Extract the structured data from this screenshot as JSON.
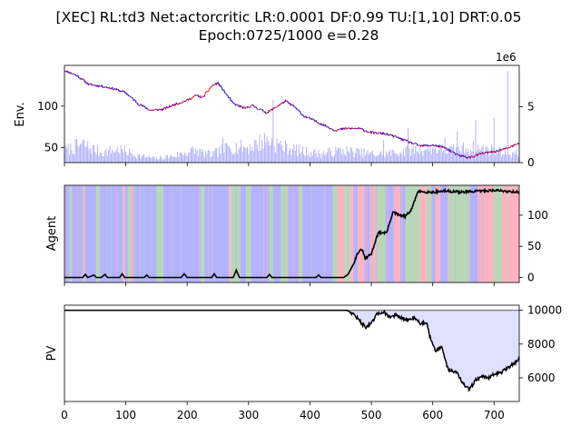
{
  "title_line1": "[XEC] RL:td3 Net:actorcritic LR:0.0001 DF:0.99 TU:[1,10] DRT:0.05",
  "title_line2": "Epoch:0725/1000 e=0.28",
  "colors": {
    "price_up": "#ff0000",
    "price_down": "#0000ff",
    "volume": "#aaaaff",
    "action_buy": "#b3b3ff",
    "action_hold": "#b7d7b7",
    "action_sell": "#ffb3c1",
    "agent_line": "#000000",
    "pv_line": "#000000",
    "pv_fill": "#e0e0ff",
    "pv_baseline": "#808080"
  },
  "chart_data": [
    {
      "type": "line",
      "name": "env",
      "ylabel": "Env.",
      "secondary_ylabel_multiplier": "1e6",
      "xlim": [
        0,
        741
      ],
      "ylim": [
        32,
        149
      ],
      "y_ticks": [
        50,
        100
      ],
      "y2lim": [
        0,
        8.7
      ],
      "y2_ticks": [
        0,
        5
      ],
      "price_knots": [
        [
          0,
          143
        ],
        [
          20,
          137
        ],
        [
          40,
          126
        ],
        [
          60,
          124
        ],
        [
          80,
          121
        ],
        [
          100,
          116
        ],
        [
          120,
          103
        ],
        [
          140,
          95
        ],
        [
          160,
          96
        ],
        [
          180,
          102
        ],
        [
          200,
          107
        ],
        [
          215,
          113
        ],
        [
          225,
          110
        ],
        [
          240,
          124
        ],
        [
          250,
          128
        ],
        [
          260,
          118
        ],
        [
          275,
          103
        ],
        [
          295,
          97
        ],
        [
          305,
          101
        ],
        [
          330,
          92
        ],
        [
          345,
          99
        ],
        [
          360,
          106
        ],
        [
          375,
          99
        ],
        [
          390,
          88
        ],
        [
          400,
          85
        ],
        [
          420,
          78
        ],
        [
          440,
          71
        ],
        [
          460,
          73
        ],
        [
          480,
          73
        ],
        [
          500,
          68
        ],
        [
          520,
          67
        ],
        [
          540,
          63
        ],
        [
          560,
          57
        ],
        [
          580,
          52
        ],
        [
          600,
          53
        ],
        [
          620,
          50
        ],
        [
          640,
          41
        ],
        [
          660,
          38
        ],
        [
          680,
          43
        ],
        [
          700,
          45
        ],
        [
          720,
          49
        ],
        [
          741,
          55
        ]
      ],
      "volume_knots": [
        [
          0,
          1.2
        ],
        [
          30,
          1.8
        ],
        [
          60,
          1.0
        ],
        [
          90,
          1.3
        ],
        [
          120,
          0.7
        ],
        [
          150,
          0.4
        ],
        [
          180,
          0.7
        ],
        [
          210,
          1.2
        ],
        [
          240,
          0.8
        ],
        [
          270,
          1.6
        ],
        [
          300,
          1.5
        ],
        [
          330,
          2.3
        ],
        [
          360,
          1.5
        ],
        [
          390,
          1.1
        ],
        [
          420,
          0.9
        ],
        [
          450,
          1.2
        ],
        [
          480,
          1.0
        ],
        [
          510,
          0.8
        ],
        [
          540,
          1.0
        ],
        [
          570,
          1.3
        ],
        [
          600,
          1.4
        ],
        [
          630,
          1.2
        ],
        [
          660,
          1.5
        ],
        [
          690,
          1.3
        ],
        [
          720,
          1.0
        ],
        [
          741,
          0.8
        ]
      ],
      "volume_spikes": [
        [
          37,
          2.5
        ],
        [
          65,
          1.8
        ],
        [
          245,
          2.8
        ],
        [
          258,
          2.2
        ],
        [
          340,
          5.6
        ],
        [
          345,
          3.5
        ],
        [
          475,
          2.3
        ],
        [
          520,
          2.0
        ],
        [
          560,
          3.1
        ],
        [
          620,
          2.2
        ],
        [
          640,
          2.8
        ],
        [
          670,
          3.8
        ],
        [
          675,
          2.4
        ],
        [
          700,
          4.0
        ],
        [
          722,
          8.2
        ]
      ]
    },
    {
      "type": "line",
      "name": "agent",
      "ylabel": "Agent",
      "xlim": [
        0,
        741
      ],
      "ylim": [
        -8,
        148
      ],
      "y2_ticks": [
        0,
        50,
        100
      ],
      "action_segments": [
        [
          "buy",
          0,
          8
        ],
        [
          "hold",
          8,
          12
        ],
        [
          "buy",
          12,
          30
        ],
        [
          "sell",
          30,
          33
        ],
        [
          "buy",
          33,
          52
        ],
        [
          "hold",
          52,
          58
        ],
        [
          "buy",
          58,
          95
        ],
        [
          "sell",
          95,
          99
        ],
        [
          "buy",
          99,
          103
        ],
        [
          "hold",
          103,
          108
        ],
        [
          "sell",
          108,
          111
        ],
        [
          "buy",
          111,
          150
        ],
        [
          "hold",
          150,
          161
        ],
        [
          "buy",
          161,
          222
        ],
        [
          "hold",
          222,
          228
        ],
        [
          "buy",
          228,
          268
        ],
        [
          "sell",
          268,
          271
        ],
        [
          "hold",
          271,
          286
        ],
        [
          "buy",
          286,
          296
        ],
        [
          "hold",
          296,
          304
        ],
        [
          "buy",
          304,
          334
        ],
        [
          "hold",
          334,
          340
        ],
        [
          "buy",
          340,
          353
        ],
        [
          "hold",
          353,
          364
        ],
        [
          "buy",
          364,
          382
        ],
        [
          "hold",
          382,
          387
        ],
        [
          "buy",
          387,
          437
        ],
        [
          "hold",
          437,
          444
        ],
        [
          "sell",
          444,
          458
        ],
        [
          "hold",
          458,
          465
        ],
        [
          "sell",
          465,
          470
        ],
        [
          "buy",
          470,
          478
        ],
        [
          "sell",
          478,
          490
        ],
        [
          "buy",
          490,
          498
        ],
        [
          "sell",
          498,
          508
        ],
        [
          "hold",
          508,
          523
        ],
        [
          "buy",
          523,
          536
        ],
        [
          "sell",
          536,
          546
        ],
        [
          "buy",
          546,
          556
        ],
        [
          "hold",
          556,
          578
        ],
        [
          "sell",
          578,
          590
        ],
        [
          "hold",
          590,
          598
        ],
        [
          "buy",
          598,
          605
        ],
        [
          "sell",
          605,
          612
        ],
        [
          "buy",
          612,
          625
        ],
        [
          "hold",
          625,
          660
        ],
        [
          "buy",
          660,
          673
        ],
        [
          "sell",
          673,
          700
        ],
        [
          "hold",
          700,
          712
        ],
        [
          "sell",
          712,
          741
        ]
      ],
      "agent_knots": [
        [
          0,
          0
        ],
        [
          30,
          0
        ],
        [
          34,
          5
        ],
        [
          38,
          0
        ],
        [
          48,
          4
        ],
        [
          52,
          0
        ],
        [
          60,
          0
        ],
        [
          66,
          5
        ],
        [
          70,
          0
        ],
        [
          90,
          0
        ],
        [
          94,
          6
        ],
        [
          98,
          0
        ],
        [
          130,
          0
        ],
        [
          134,
          4
        ],
        [
          138,
          0
        ],
        [
          190,
          0
        ],
        [
          195,
          6
        ],
        [
          200,
          0
        ],
        [
          240,
          0
        ],
        [
          244,
          6
        ],
        [
          248,
          0
        ],
        [
          275,
          0
        ],
        [
          280,
          12
        ],
        [
          285,
          0
        ],
        [
          330,
          0
        ],
        [
          334,
          5
        ],
        [
          338,
          0
        ],
        [
          410,
          0
        ],
        [
          414,
          4
        ],
        [
          418,
          0
        ],
        [
          455,
          0
        ],
        [
          462,
          5
        ],
        [
          470,
          20
        ],
        [
          478,
          40
        ],
        [
          485,
          45
        ],
        [
          490,
          30
        ],
        [
          500,
          38
        ],
        [
          508,
          63
        ],
        [
          512,
          72
        ],
        [
          525,
          72
        ],
        [
          535,
          105
        ],
        [
          545,
          100
        ],
        [
          555,
          98
        ],
        [
          565,
          108
        ],
        [
          575,
          136
        ],
        [
          580,
          138
        ],
        [
          600,
          137
        ],
        [
          620,
          139
        ],
        [
          650,
          137
        ],
        [
          680,
          139
        ],
        [
          700,
          140
        ],
        [
          741,
          137
        ]
      ]
    },
    {
      "type": "area",
      "name": "pv",
      "ylabel": "PV",
      "xlim": [
        0,
        741
      ],
      "ylim": [
        4600,
        10300
      ],
      "y2_ticks": [
        6000,
        8000,
        10000
      ],
      "baseline": 10000,
      "pv_knots": [
        [
          0,
          10000
        ],
        [
          460,
          10000
        ],
        [
          470,
          9800
        ],
        [
          478,
          9500
        ],
        [
          490,
          9000
        ],
        [
          500,
          9200
        ],
        [
          510,
          9800
        ],
        [
          520,
          9900
        ],
        [
          530,
          9600
        ],
        [
          540,
          9700
        ],
        [
          550,
          9500
        ],
        [
          560,
          9400
        ],
        [
          570,
          9600
        ],
        [
          580,
          9200
        ],
        [
          590,
          9300
        ],
        [
          595,
          8500
        ],
        [
          605,
          7600
        ],
        [
          615,
          7800
        ],
        [
          625,
          6500
        ],
        [
          640,
          6300
        ],
        [
          650,
          5600
        ],
        [
          660,
          5300
        ],
        [
          670,
          5900
        ],
        [
          680,
          6100
        ],
        [
          690,
          6000
        ],
        [
          700,
          6200
        ],
        [
          710,
          6300
        ],
        [
          720,
          6500
        ],
        [
          730,
          6800
        ],
        [
          741,
          7100
        ]
      ]
    }
  ],
  "x_ticks": [
    0,
    100,
    200,
    300,
    400,
    500,
    600,
    700
  ]
}
